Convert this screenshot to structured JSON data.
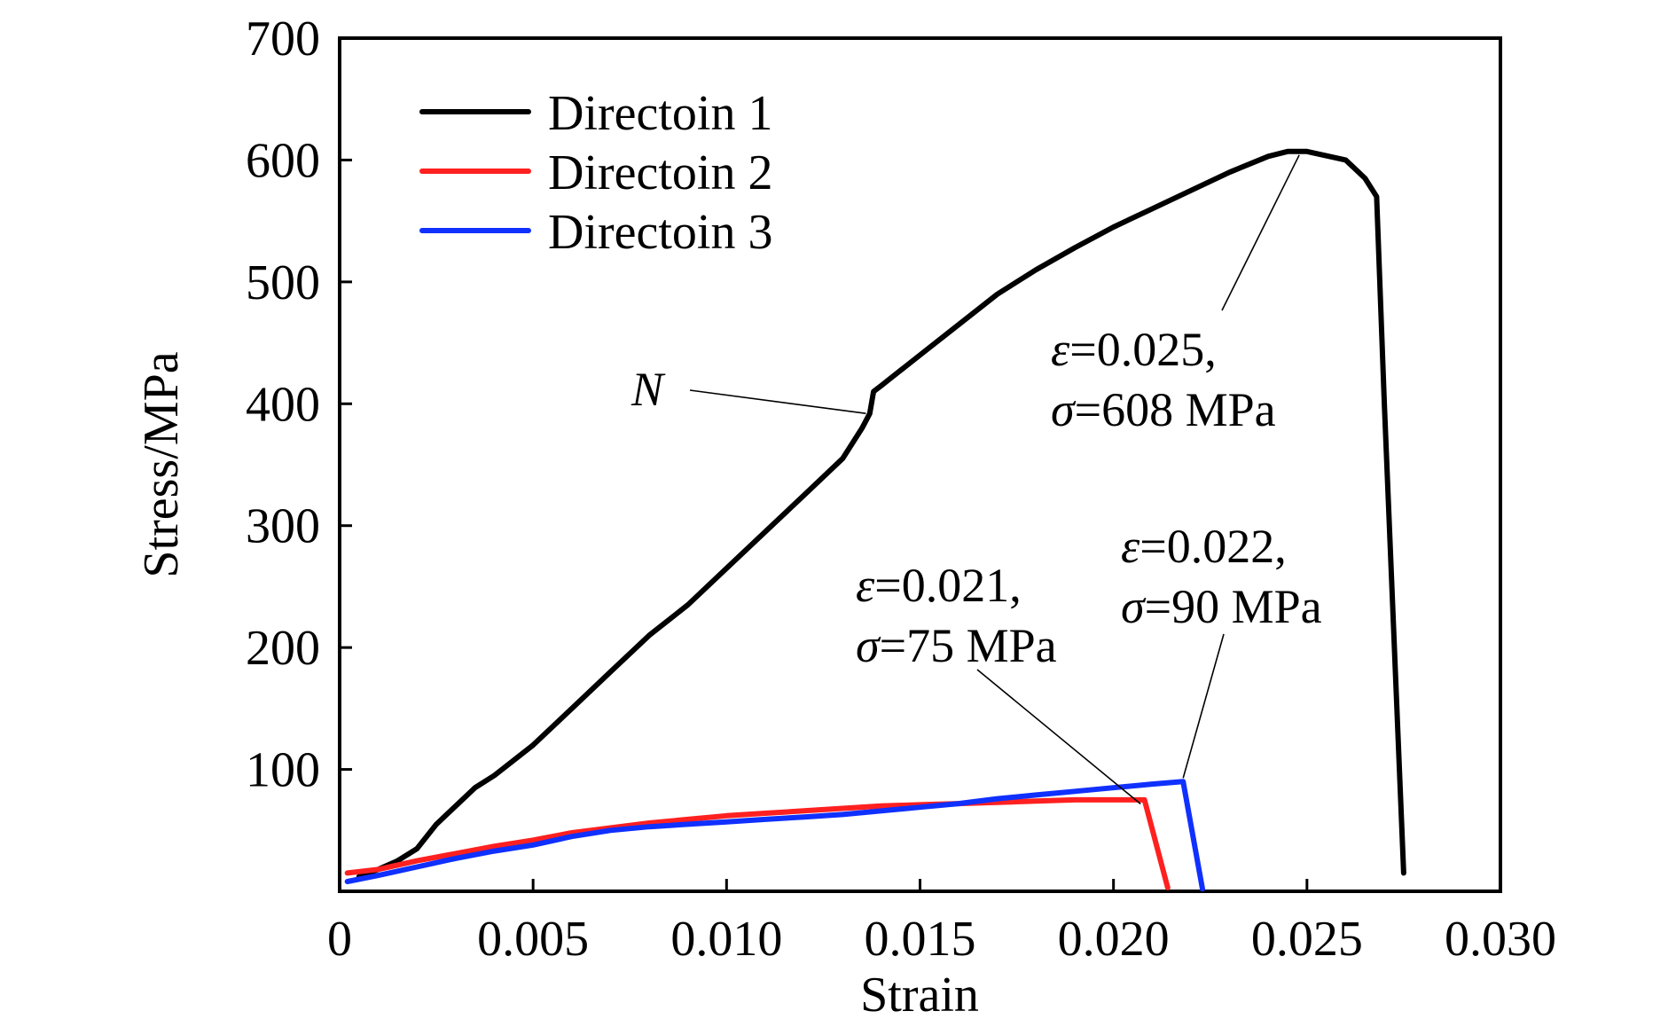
{
  "chart_data": {
    "type": "line",
    "title": "",
    "xlabel": "Strain",
    "ylabel": "Stress/MPa",
    "xlim": [
      0,
      0.03
    ],
    "ylim": [
      0,
      700
    ],
    "x_ticks": [
      0,
      0.005,
      0.01,
      0.015,
      0.02,
      0.025,
      0.03
    ],
    "x_tick_labels": [
      "0",
      "0.005",
      "0.010",
      "0.015",
      "0.020",
      "0.025",
      "0.030"
    ],
    "y_ticks": [
      100,
      200,
      300,
      400,
      500,
      600,
      700
    ],
    "y_tick_labels": [
      "100",
      "200",
      "300",
      "400",
      "500",
      "600",
      "700"
    ],
    "grid": false,
    "legend_position": "top-left",
    "series": [
      {
        "name": "Directoin 1",
        "color": "#000000",
        "x": [
          0.0005,
          0.001,
          0.0015,
          0.002,
          0.0025,
          0.003,
          0.0035,
          0.004,
          0.005,
          0.006,
          0.007,
          0.008,
          0.009,
          0.01,
          0.011,
          0.012,
          0.013,
          0.0135,
          0.0137,
          0.0138,
          0.014,
          0.015,
          0.016,
          0.017,
          0.018,
          0.019,
          0.02,
          0.021,
          0.022,
          0.023,
          0.024,
          0.0245,
          0.025,
          0.026,
          0.0265,
          0.0268,
          0.027,
          0.0275
        ],
        "y": [
          12,
          18,
          25,
          35,
          55,
          70,
          85,
          95,
          120,
          150,
          180,
          210,
          235,
          265,
          295,
          325,
          355,
          380,
          392,
          410,
          415,
          440,
          465,
          490,
          510,
          528,
          545,
          560,
          575,
          590,
          603,
          607,
          607,
          600,
          585,
          570,
          400,
          15
        ]
      },
      {
        "name": "Directoin 2",
        "color": "#ff2020",
        "x": [
          0.0002,
          0.001,
          0.002,
          0.003,
          0.004,
          0.005,
          0.006,
          0.007,
          0.008,
          0.009,
          0.01,
          0.011,
          0.012,
          0.013,
          0.014,
          0.015,
          0.016,
          0.017,
          0.018,
          0.019,
          0.02,
          0.0208,
          0.0214
        ],
        "y": [
          15,
          18,
          25,
          31,
          37,
          42,
          48,
          52,
          56,
          59,
          62,
          64,
          66,
          68,
          70,
          71,
          72,
          73,
          74,
          75,
          75,
          75,
          3
        ]
      },
      {
        "name": "Directoin 3",
        "color": "#1030ff",
        "x": [
          0.0002,
          0.001,
          0.002,
          0.003,
          0.004,
          0.005,
          0.006,
          0.007,
          0.008,
          0.009,
          0.01,
          0.011,
          0.012,
          0.013,
          0.014,
          0.015,
          0.016,
          0.017,
          0.018,
          0.019,
          0.02,
          0.021,
          0.0218,
          0.0223
        ],
        "y": [
          8,
          13,
          20,
          27,
          33,
          38,
          45,
          50,
          53,
          55,
          57,
          59,
          61,
          63,
          66,
          69,
          72,
          76,
          79,
          82,
          85,
          88,
          90,
          2
        ]
      }
    ],
    "annotations": [
      {
        "id": "n",
        "text": "N",
        "point": [
          0.0136,
          395
        ]
      },
      {
        "id": "d1-peak",
        "line1_var": "ε",
        "line1_value": "=0.025,",
        "line2_var": "σ",
        "line2_value": "=608 MPa",
        "point": [
          0.0248,
          607
        ]
      },
      {
        "id": "d2-peak",
        "line1_var": "ε",
        "line1_value": "=0.021,",
        "line2_var": "σ",
        "line2_value": "=75 MPa",
        "point": [
          0.0207,
          76
        ]
      },
      {
        "id": "d3-peak",
        "line1_var": "ε",
        "line1_value": "=0.022,",
        "line2_var": "σ",
        "line2_value": "=90 MPa",
        "point": [
          0.0218,
          90
        ]
      }
    ]
  }
}
